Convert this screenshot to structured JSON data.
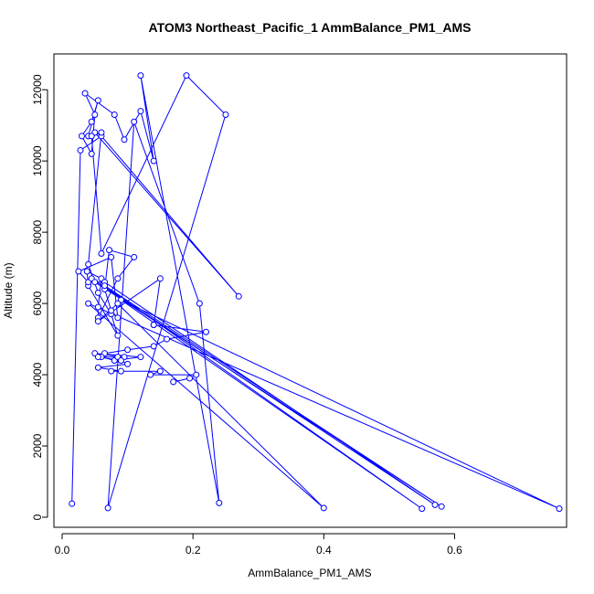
{
  "chart_data": {
    "type": "line",
    "title": "ATOM3 Northeast_Pacific_1 AmmBalance_PM1_AMS",
    "xlabel": "AmmBalance_PM1_AMS",
    "ylabel": "Altitude (m)",
    "xlim": [
      0,
      0.76
    ],
    "ylim": [
      0,
      12800
    ],
    "xticks": [
      0.0,
      0.2,
      0.4,
      0.6
    ],
    "xtick_labels": [
      "0.0",
      "0.2",
      "0.4",
      "0.6"
    ],
    "yticks": [
      0,
      2000,
      4000,
      6000,
      8000,
      10000,
      12000
    ],
    "ytick_labels": [
      "0",
      "2000",
      "4000",
      "6000",
      "8000",
      "10000",
      "12000"
    ],
    "grid": false,
    "line_color": "#0000FF",
    "marker": "open-circle",
    "series": [
      {
        "x": [
          0.015,
          0.028,
          0.06,
          0.27,
          0.05,
          0.04,
          0.055,
          0.045,
          0.03,
          0.045,
          0.05,
          0.035,
          0.08,
          0.095,
          0.12,
          0.14,
          0.12,
          0.24,
          0.21,
          0.11,
          0.07,
          0.25,
          0.19,
          0.06,
          0.045,
          0.06,
          0.04,
          0.055,
          0.075,
          0.085,
          0.04,
          0.038,
          0.06,
          0.055,
          0.055,
          0.085,
          0.11,
          0.072,
          0.065,
          0.075,
          0.085,
          0.075,
          0.025,
          0.04,
          0.065,
          0.57,
          0.045,
          0.05,
          0.58,
          0.065,
          0.55,
          0.09,
          0.76,
          0.04,
          0.4,
          0.085,
          0.055,
          0.15,
          0.14,
          0.14,
          0.22,
          0.16,
          0.14,
          0.1,
          0.065,
          0.06,
          0.08,
          0.12,
          0.05,
          0.095,
          0.085,
          0.055,
          0.09,
          0.1,
          0.055,
          0.09,
          0.075,
          0.15,
          0.135,
          0.205,
          0.195,
          0.17
        ],
        "y": [
          380,
          10300,
          10700,
          6200,
          10800,
          10700,
          11700,
          11100,
          10700,
          10200,
          11300,
          11900,
          11300,
          10600,
          11400,
          10000,
          12400,
          400,
          6000,
          11100,
          260,
          11300,
          12400,
          7400,
          10700,
          10800,
          7100,
          6300,
          5700,
          5100,
          6500,
          6900,
          6700,
          5900,
          5600,
          6700,
          7300,
          7500,
          6400,
          5800,
          5600,
          7300,
          6900,
          6600,
          6600,
          350,
          6700,
          6600,
          300,
          6500,
          240,
          6100,
          240,
          6000,
          260,
          6000,
          5500,
          6700,
          5400,
          5400,
          5200,
          5000,
          4800,
          4700,
          4600,
          4500,
          4400,
          4500,
          4600,
          4500,
          4500,
          4500,
          4400,
          4300,
          4200,
          4100,
          4100,
          4100,
          4000,
          4000,
          3900,
          3800
        ]
      }
    ]
  }
}
